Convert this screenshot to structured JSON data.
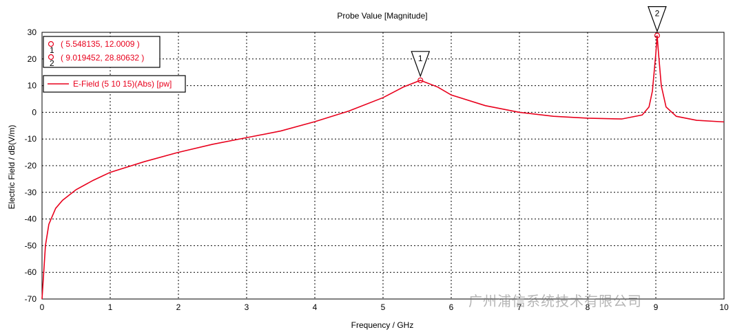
{
  "chart_data": {
    "type": "line",
    "title": "Probe Value [Magnitude]",
    "xlabel": "Frequency / GHz",
    "ylabel": "Electric Field / dB(V/m)",
    "xlim": [
      0,
      10
    ],
    "ylim": [
      -70,
      30
    ],
    "xticks": [
      0,
      1,
      2,
      3,
      4,
      5,
      6,
      7,
      8,
      9,
      10
    ],
    "yticks": [
      -70,
      -60,
      -50,
      -40,
      -30,
      -20,
      -10,
      0,
      10,
      20,
      30
    ],
    "grid": true,
    "series": [
      {
        "name": "E-Field (5 10 15)(Abs) [pw]",
        "color": "#e8001c",
        "x": [
          0.0,
          0.02,
          0.05,
          0.1,
          0.2,
          0.3,
          0.5,
          0.75,
          1.0,
          1.5,
          2.0,
          2.5,
          3.0,
          3.5,
          4.0,
          4.5,
          5.0,
          5.3,
          5.548135,
          5.8,
          6.0,
          6.5,
          7.0,
          7.5,
          8.0,
          8.5,
          8.8,
          8.9,
          8.95,
          9.0,
          9.019452,
          9.04,
          9.08,
          9.15,
          9.3,
          9.6,
          10.0
        ],
        "y": [
          -70.0,
          -62.0,
          -50.0,
          -42.0,
          -36.0,
          -33.0,
          -29.0,
          -25.5,
          -22.5,
          -18.5,
          -15.0,
          -12.0,
          -9.5,
          -7.0,
          -3.5,
          0.5,
          5.5,
          9.5,
          12.0,
          9.5,
          6.5,
          2.5,
          0.0,
          -1.5,
          -2.2,
          -2.5,
          -1.0,
          2.0,
          8.0,
          22.0,
          28.80632,
          22.0,
          10.0,
          2.0,
          -1.5,
          -3.0,
          -3.6
        ]
      }
    ],
    "markers": [
      {
        "id": "1",
        "x": 5.548135,
        "y": 12.0009,
        "label": "( 5.548135, 12.0009 )"
      },
      {
        "id": "2",
        "x": 9.019452,
        "y": 28.80632,
        "label": "( 9.019452, 28.80632 )"
      }
    ],
    "legend": {
      "placement": "top-left",
      "entries": [
        "E-Field (5 10 15)(Abs) [pw]"
      ]
    }
  },
  "watermark": "广州浦信系统技术有限公司"
}
